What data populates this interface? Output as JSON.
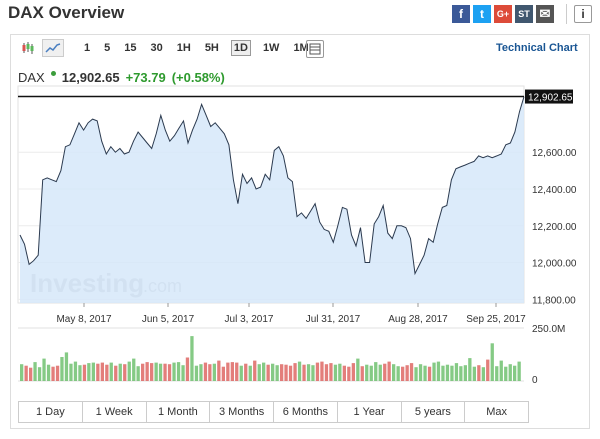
{
  "page_title": "DAX Overview",
  "share": [
    {
      "icon": "facebook-icon",
      "glyph": "f",
      "color": "#3b5998"
    },
    {
      "icon": "twitter-icon",
      "glyph": "t",
      "color": "#1da1f2"
    },
    {
      "icon": "google-plus-icon",
      "glyph": "G+",
      "color": "#dd4b39"
    },
    {
      "icon": "stocktwits-icon",
      "glyph": "ST",
      "color": "#40576f"
    },
    {
      "icon": "email-icon",
      "glyph": "✉",
      "color": "#555555"
    }
  ],
  "info_glyph": "i",
  "timeframes": [
    "1",
    "5",
    "15",
    "30",
    "1H",
    "5H",
    "1D",
    "1W",
    "1M"
  ],
  "active_timeframe": "1D",
  "technical_chart_label": "Technical Chart",
  "quote": {
    "symbol": "DAX",
    "price": "12,902.65",
    "change": "+73.79",
    "change_pct": "(+0.58%)"
  },
  "watermark": {
    "main": "Investing",
    "suffix": ".com"
  },
  "chart_data": {
    "type": "area",
    "x_tick_labels": [
      "May 8, 2017",
      "Jun 5, 2017",
      "Jul 3, 2017",
      "Jul 31, 2017",
      "Aug 28, 2017",
      "Sep 25, 2017"
    ],
    "y_tick_labels": [
      "12,600.00",
      "12,400.00",
      "12,200.00",
      "12,000.00",
      "11,800.00"
    ],
    "ylim": [
      11780,
      12960
    ],
    "last_value_label": "12,902.65",
    "last_value": 12902.65,
    "values": [
      12150,
      12100,
      11990,
      12010,
      12040,
      12450,
      12460,
      12450,
      12440,
      12500,
      12630,
      12640,
      12700,
      12760,
      12720,
      12760,
      12780,
      12770,
      12660,
      12590,
      12630,
      12600,
      12620,
      12590,
      12600,
      12660,
      12710,
      12680,
      12650,
      12620,
      12700,
      12800,
      12720,
      12660,
      12690,
      12730,
      12770,
      12650,
      12720,
      12780,
      12860,
      12800,
      12740,
      12760,
      12730,
      12700,
      12640,
      12450,
      12320,
      12480,
      12430,
      12460,
      12400,
      12410,
      12480,
      12450,
      12610,
      12630,
      12580,
      12460,
      12440,
      12250,
      12270,
      12240,
      12280,
      12320,
      12220,
      12180,
      12170,
      12110,
      12200,
      12300,
      12290,
      12150,
      12090,
      12190,
      12000,
      12000,
      12210,
      12250,
      12310,
      12160,
      12130,
      12200,
      12200,
      12190,
      12130,
      11940,
      11990,
      12040,
      12130,
      12110,
      12210,
      12300,
      12310,
      12450,
      12510,
      12520,
      12530,
      12540,
      12550,
      12580,
      12570,
      12580,
      12570,
      12580,
      12590,
      12640,
      12650,
      12710,
      12820,
      12902
    ],
    "volume_axis_labels": [
      "250.0M",
      "0"
    ],
    "volume": [
      0.33,
      0.3,
      0.26,
      0.37,
      0.27,
      0.44,
      0.32,
      0.28,
      0.3,
      0.47,
      0.56,
      0.34,
      0.38,
      0.31,
      0.32,
      0.35,
      0.36,
      0.34,
      0.36,
      0.32,
      0.36,
      0.3,
      0.34,
      0.33,
      0.38,
      0.44,
      0.29,
      0.34,
      0.37,
      0.35,
      0.36,
      0.34,
      0.34,
      0.33,
      0.36,
      0.37,
      0.31,
      0.46,
      0.88,
      0.3,
      0.33,
      0.36,
      0.33,
      0.34,
      0.4,
      0.28,
      0.36,
      0.37,
      0.36,
      0.3,
      0.34,
      0.3,
      0.4,
      0.33,
      0.36,
      0.32,
      0.34,
      0.31,
      0.33,
      0.32,
      0.3,
      0.35,
      0.38,
      0.32,
      0.33,
      0.31,
      0.36,
      0.38,
      0.33,
      0.35,
      0.32,
      0.34,
      0.3,
      0.28,
      0.35,
      0.44,
      0.29,
      0.32,
      0.3,
      0.37,
      0.32,
      0.34,
      0.38,
      0.33,
      0.29,
      0.28,
      0.31,
      0.35,
      0.27,
      0.33,
      0.3,
      0.28,
      0.36,
      0.38,
      0.3,
      0.32,
      0.3,
      0.35,
      0.29,
      0.31,
      0.45,
      0.28,
      0.31,
      0.27,
      0.42,
      0.74,
      0.29,
      0.4,
      0.28,
      0.33,
      0.3,
      0.38
    ],
    "volume_colors": [
      "#d9534f",
      "#5cb85c"
    ]
  },
  "ranges": [
    "1 Day",
    "1 Week",
    "1 Month",
    "3 Months",
    "6 Months",
    "1 Year",
    "5 years",
    "Max"
  ]
}
